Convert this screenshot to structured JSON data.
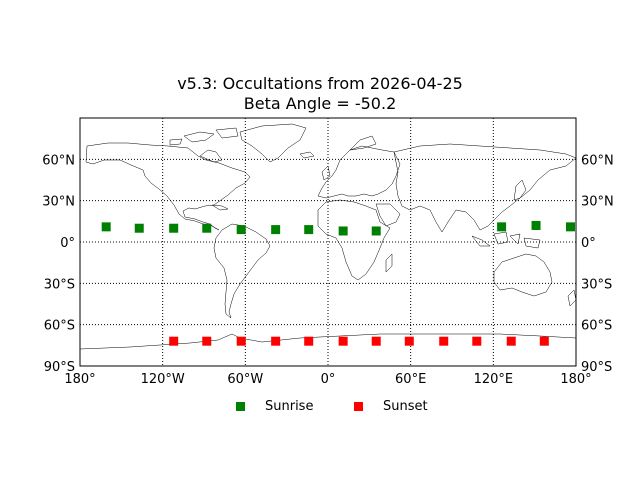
{
  "chart_data": {
    "type": "scatter",
    "title": "v5.3: Occultations from 2026-04-25",
    "subtitle": "Beta Angle = -50.2",
    "projection": "equirectangular",
    "xlim": [
      -180,
      180
    ],
    "ylim": [
      -90,
      90
    ],
    "x_ticks": [
      {
        "value": -180,
        "label": "180°"
      },
      {
        "value": -120,
        "label": "120°W"
      },
      {
        "value": -60,
        "label": "60°W"
      },
      {
        "value": 0,
        "label": "0°"
      },
      {
        "value": 60,
        "label": "60°E"
      },
      {
        "value": 120,
        "label": "120°E"
      },
      {
        "value": 180,
        "label": "180°"
      }
    ],
    "y_ticks": [
      {
        "value": 60,
        "label": "60°N"
      },
      {
        "value": 30,
        "label": "30°N"
      },
      {
        "value": 0,
        "label": "0°"
      },
      {
        "value": -30,
        "label": "30°S"
      },
      {
        "value": -60,
        "label": "60°S"
      },
      {
        "value": -90,
        "label": "90°S"
      }
    ],
    "grid": true,
    "grid_style": "dotted",
    "legend_position": "bottom-center",
    "series": [
      {
        "name": "Sunrise",
        "color": "#008000",
        "marker": "square",
        "points": [
          {
            "lon": -161,
            "lat": 11
          },
          {
            "lon": -137,
            "lat": 10
          },
          {
            "lon": -112,
            "lat": 10
          },
          {
            "lon": -88,
            "lat": 10
          },
          {
            "lon": -63,
            "lat": 9
          },
          {
            "lon": -38,
            "lat": 9
          },
          {
            "lon": -14,
            "lat": 9
          },
          {
            "lon": 11,
            "lat": 8
          },
          {
            "lon": 35,
            "lat": 8
          },
          {
            "lon": 126,
            "lat": 11
          },
          {
            "lon": 151,
            "lat": 12
          },
          {
            "lon": 176,
            "lat": 11
          }
        ]
      },
      {
        "name": "Sunset",
        "color": "#ff0000",
        "marker": "square",
        "points": [
          {
            "lon": -112,
            "lat": -72
          },
          {
            "lon": -88,
            "lat": -72
          },
          {
            "lon": -63,
            "lat": -72
          },
          {
            "lon": -38,
            "lat": -72
          },
          {
            "lon": -14,
            "lat": -72
          },
          {
            "lon": 11,
            "lat": -72
          },
          {
            "lon": 35,
            "lat": -72
          },
          {
            "lon": 59,
            "lat": -72
          },
          {
            "lon": 84,
            "lat": -72
          },
          {
            "lon": 108,
            "lat": -72
          },
          {
            "lon": 133,
            "lat": -72
          },
          {
            "lon": 157,
            "lat": -72
          }
        ]
      }
    ]
  }
}
